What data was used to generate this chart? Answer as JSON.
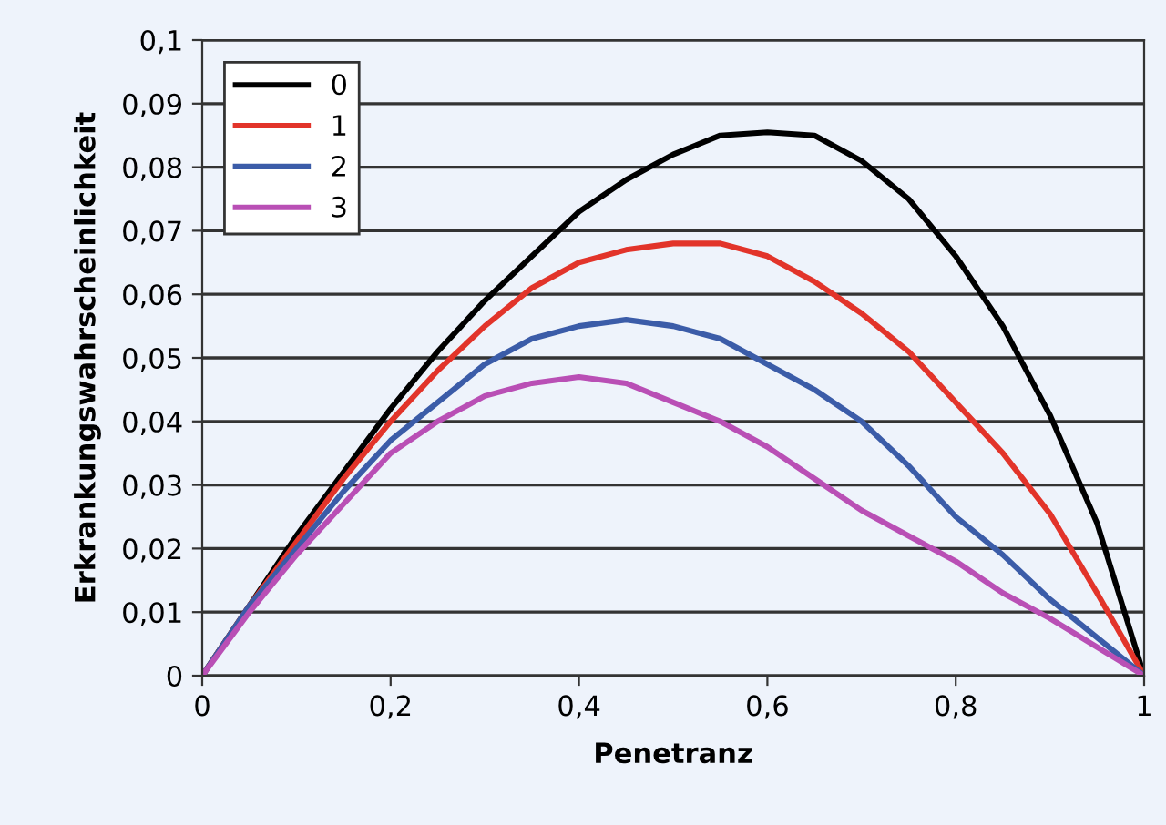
{
  "chart_data": {
    "type": "line",
    "xlabel": "Penetranz",
    "ylabel": "Erkrankungswahrscheinlichkeit",
    "x": [
      0,
      0.05,
      0.1,
      0.15,
      0.2,
      0.25,
      0.3,
      0.35,
      0.4,
      0.45,
      0.5,
      0.55,
      0.6,
      0.65,
      0.7,
      0.75,
      0.8,
      0.85,
      0.9,
      0.95,
      1
    ],
    "series": [
      {
        "name": "0",
        "color": "#000000",
        "values": [
          0,
          0.011,
          0.022,
          0.032,
          0.042,
          0.051,
          0.059,
          0.066,
          0.073,
          0.078,
          0.082,
          0.085,
          0.0855,
          0.085,
          0.081,
          0.075,
          0.066,
          0.055,
          0.041,
          0.024,
          0
        ]
      },
      {
        "name": "1",
        "color": "#e2342a",
        "values": [
          0,
          0.011,
          0.021,
          0.031,
          0.04,
          0.048,
          0.055,
          0.061,
          0.065,
          0.067,
          0.068,
          0.068,
          0.066,
          0.062,
          0.057,
          0.051,
          0.043,
          0.035,
          0.0255,
          0.013,
          0
        ]
      },
      {
        "name": "2",
        "color": "#3b5ca8",
        "values": [
          0,
          0.011,
          0.02,
          0.029,
          0.037,
          0.043,
          0.049,
          0.053,
          0.055,
          0.056,
          0.055,
          0.053,
          0.049,
          0.045,
          0.04,
          0.033,
          0.025,
          0.019,
          0.012,
          0.006,
          0
        ]
      },
      {
        "name": "3",
        "color": "#b94fb5",
        "values": [
          0,
          0.01,
          0.019,
          0.027,
          0.035,
          0.04,
          0.044,
          0.046,
          0.047,
          0.046,
          0.043,
          0.04,
          0.036,
          0.031,
          0.026,
          0.022,
          0.018,
          0.013,
          0.009,
          0.0045,
          0
        ]
      }
    ],
    "xlim": [
      0,
      1
    ],
    "ylim": [
      0,
      0.1
    ],
    "xticks": [
      0,
      {
        "value": 0.2,
        "label": "0,2"
      },
      {
        "value": 0.4,
        "label": "0,4"
      },
      {
        "value": 0.6,
        "label": "0,6"
      },
      {
        "value": 0.8,
        "label": "0,8"
      },
      1
    ],
    "yticks": [
      0,
      {
        "value": 0.01,
        "label": "0,01"
      },
      {
        "value": 0.02,
        "label": "0,02"
      },
      {
        "value": 0.03,
        "label": "0,03"
      },
      {
        "value": 0.04,
        "label": "0,04"
      },
      {
        "value": 0.05,
        "label": "0,05"
      },
      {
        "value": 0.06,
        "label": "0,06"
      },
      {
        "value": 0.07,
        "label": "0,07"
      },
      {
        "value": 0.08,
        "label": "0,08"
      },
      {
        "value": 0.09,
        "label": "0,09"
      },
      {
        "value": 0.1,
        "label": "0,1"
      }
    ],
    "grid": "y",
    "legend": "top left",
    "marker": "none",
    "line_style": "solid"
  }
}
